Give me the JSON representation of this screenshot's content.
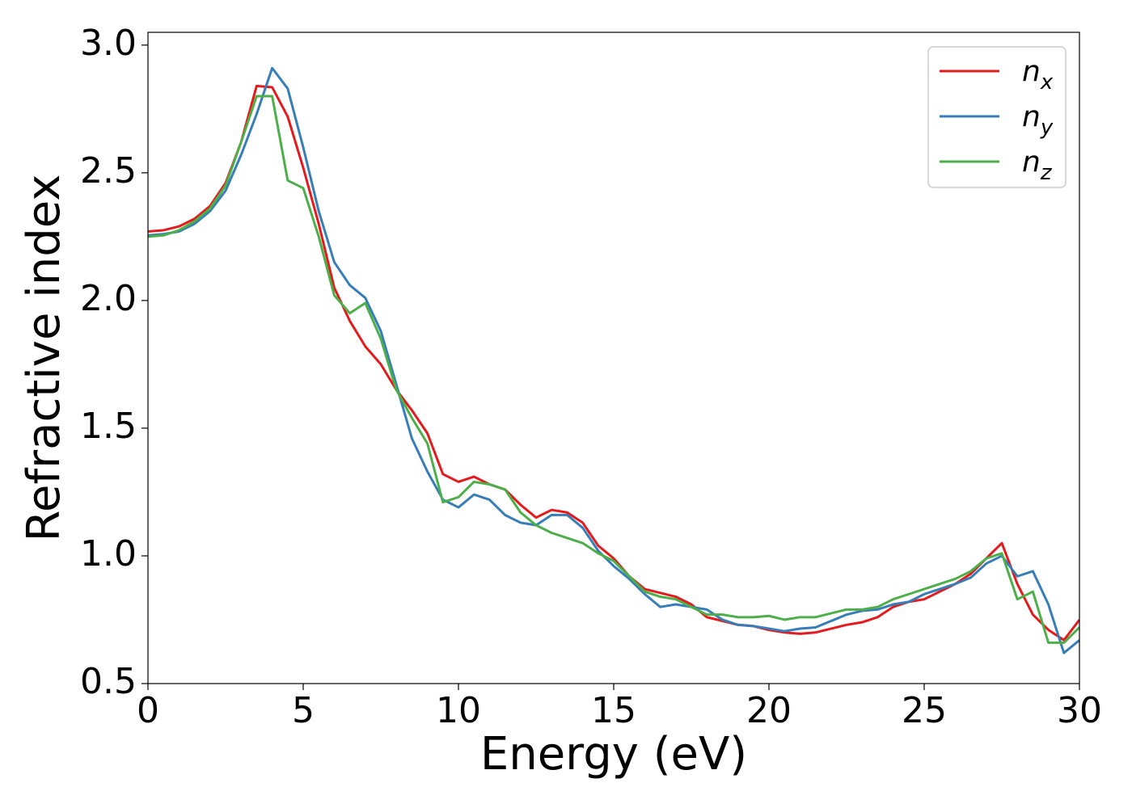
{
  "chart_data": {
    "type": "line",
    "x_label": "Energy (eV)",
    "y_label": "Refractive index",
    "x": [
      0,
      0.5,
      1,
      1.5,
      2,
      2.5,
      3,
      3.5,
      4,
      4.5,
      5,
      5.5,
      6,
      6.5,
      7,
      7.5,
      8,
      8.5,
      9,
      9.5,
      10,
      10.5,
      11,
      11.5,
      12,
      12.5,
      13,
      13.5,
      14,
      14.5,
      15,
      15.5,
      16,
      16.5,
      17,
      17.5,
      18,
      18.5,
      19,
      19.5,
      20,
      20.5,
      21,
      21.5,
      22,
      22.5,
      23,
      23.5,
      24,
      24.5,
      25,
      25.5,
      26,
      26.5,
      27,
      27.5,
      28,
      28.5,
      29,
      29.5,
      30
    ],
    "series": [
      {
        "name": "nx",
        "color": "#e41a1c",
        "values": [
          2.27,
          2.275,
          2.29,
          2.32,
          2.37,
          2.46,
          2.62,
          2.84,
          2.835,
          2.72,
          2.52,
          2.3,
          2.05,
          1.92,
          1.82,
          1.75,
          1.65,
          1.57,
          1.48,
          1.32,
          1.29,
          1.31,
          1.28,
          1.26,
          1.2,
          1.15,
          1.18,
          1.17,
          1.13,
          1.04,
          0.99,
          0.92,
          0.87,
          0.855,
          0.84,
          0.81,
          0.76,
          0.745,
          0.73,
          0.725,
          0.71,
          0.7,
          0.695,
          0.7,
          0.715,
          0.73,
          0.74,
          0.76,
          0.8,
          0.82,
          0.83,
          0.86,
          0.89,
          0.93,
          0.99,
          1.05,
          0.89,
          0.77,
          0.71,
          0.67,
          0.75
        ]
      },
      {
        "name": "ny",
        "color": "#377eb8",
        "values": [
          2.255,
          2.26,
          2.27,
          2.3,
          2.35,
          2.43,
          2.57,
          2.73,
          2.91,
          2.83,
          2.6,
          2.35,
          2.15,
          2.06,
          2.01,
          1.88,
          1.67,
          1.46,
          1.33,
          1.22,
          1.19,
          1.24,
          1.22,
          1.16,
          1.13,
          1.12,
          1.16,
          1.16,
          1.11,
          1.02,
          0.96,
          0.91,
          0.85,
          0.8,
          0.81,
          0.8,
          0.79,
          0.75,
          0.73,
          0.725,
          0.715,
          0.705,
          0.715,
          0.72,
          0.745,
          0.77,
          0.785,
          0.79,
          0.81,
          0.82,
          0.85,
          0.87,
          0.89,
          0.915,
          0.97,
          1.0,
          0.92,
          0.94,
          0.81,
          0.62,
          0.67
        ]
      },
      {
        "name": "nz",
        "color": "#4daf4a",
        "values": [
          2.25,
          2.255,
          2.275,
          2.31,
          2.36,
          2.45,
          2.62,
          2.8,
          2.8,
          2.47,
          2.44,
          2.25,
          2.02,
          1.95,
          1.99,
          1.85,
          1.65,
          1.54,
          1.44,
          1.21,
          1.23,
          1.29,
          1.28,
          1.26,
          1.17,
          1.12,
          1.09,
          1.07,
          1.05,
          1.01,
          0.98,
          0.92,
          0.86,
          0.84,
          0.83,
          0.8,
          0.77,
          0.77,
          0.76,
          0.76,
          0.765,
          0.75,
          0.76,
          0.76,
          0.775,
          0.79,
          0.79,
          0.8,
          0.83,
          0.85,
          0.87,
          0.89,
          0.91,
          0.94,
          0.99,
          1.01,
          0.83,
          0.86,
          0.66,
          0.66,
          0.72
        ]
      }
    ],
    "xlim": [
      0,
      30
    ],
    "xticks": [
      0,
      5,
      10,
      15,
      20,
      25,
      30
    ],
    "ylim": [
      0.5,
      3.05
    ],
    "yticks": [
      0.5,
      {
        "value": 1,
        "label": "1.0"
      },
      1.5,
      {
        "value": 2,
        "label": "2.0"
      },
      2.5,
      {
        "value": 3,
        "label": "3.0"
      }
    ],
    "legend": "upper right"
  }
}
